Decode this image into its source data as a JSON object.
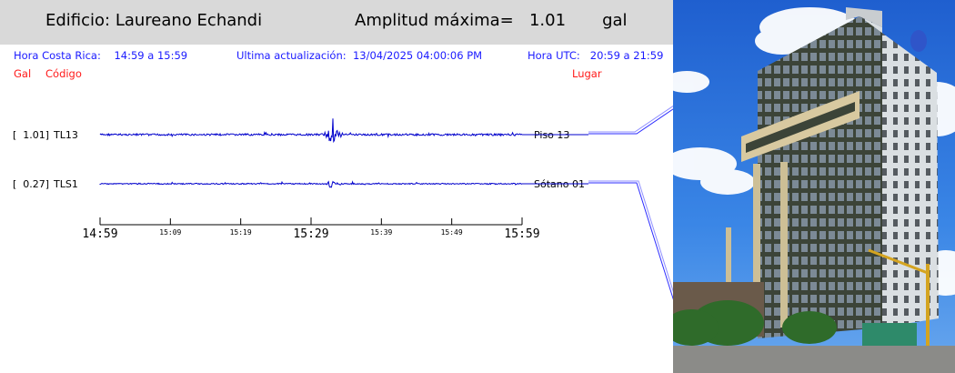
{
  "header": {
    "building_label": "Edificio: Laureano Echandi",
    "amplitude_label": "Amplitud máxima=",
    "amplitude_value": "1.01",
    "amplitude_unit": "gal"
  },
  "info": {
    "cr_label": "Hora Costa Rica:",
    "cr_range": "14:59 a 15:59",
    "update_label": "Ultima actualización:",
    "update_value": "13/04/2025 04:00:06 PM",
    "utc_label": "Hora UTC:",
    "utc_range": "20:59 a 21:59"
  },
  "columns": {
    "gal": "Gal",
    "code": "Código",
    "place": "Lugar"
  },
  "channels": [
    {
      "amp": "[  1.01]",
      "code": "TL13",
      "place": "Piso 13"
    },
    {
      "amp": "[  0.27]",
      "code": "TLS1",
      "place": "Sótano 01"
    }
  ],
  "time_axis": {
    "major": [
      "14:59",
      "15:29",
      "15:59"
    ],
    "minor": [
      "15:09",
      "15:19",
      "15:39",
      "15:49"
    ]
  },
  "colors": {
    "trace": "#0000cc",
    "info": "#1a1aff",
    "accent": "#ff1a1a",
    "header_bg": "#d9d9d9"
  }
}
